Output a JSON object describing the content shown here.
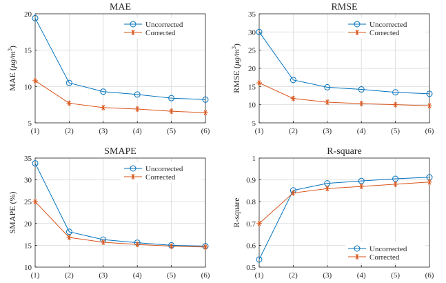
{
  "colors": {
    "uncorrected": "#0072BD",
    "corrected": "#D95319"
  },
  "chart_data": [
    {
      "type": "line",
      "title": "MAE",
      "ylabel_prefix": "MAE (",
      "ylabel_unit": "μg/m",
      "ylabel_exp": "3",
      "ylabel_suffix": ")",
      "categories": [
        "(1)",
        "(2)",
        "(3)",
        "(4)",
        "(5)",
        "(6)"
      ],
      "ylim": [
        5,
        20
      ],
      "yticks": [
        5,
        10,
        15,
        20
      ],
      "grid": true,
      "legend_position": "top-right",
      "series": [
        {
          "name": "Uncorrected",
          "marker": "circle",
          "values": [
            19.4,
            10.5,
            9.3,
            8.9,
            8.4,
            8.2
          ]
        },
        {
          "name": "Corrected",
          "marker": "star",
          "values": [
            10.8,
            7.7,
            7.1,
            6.9,
            6.6,
            6.4
          ]
        }
      ]
    },
    {
      "type": "line",
      "title": "RMSE",
      "ylabel_prefix": "RMSE (",
      "ylabel_unit": "μg/m",
      "ylabel_exp": "3",
      "ylabel_suffix": ")",
      "categories": [
        "(1)",
        "(2)",
        "(3)",
        "(4)",
        "(5)",
        "(6)"
      ],
      "ylim": [
        5,
        35
      ],
      "yticks": [
        5,
        10,
        15,
        20,
        25,
        30,
        35
      ],
      "grid": true,
      "legend_position": "top-right",
      "series": [
        {
          "name": "Uncorrected",
          "marker": "circle",
          "values": [
            30.0,
            16.8,
            14.8,
            14.2,
            13.4,
            13.0
          ]
        },
        {
          "name": "Corrected",
          "marker": "star",
          "values": [
            16.0,
            11.7,
            10.7,
            10.3,
            10.0,
            9.7
          ]
        }
      ]
    },
    {
      "type": "line",
      "title": "SMAPE",
      "ylabel_prefix": "SMAPE (%)",
      "ylabel_unit": "",
      "ylabel_exp": "",
      "ylabel_suffix": "",
      "categories": [
        "(1)",
        "(2)",
        "(3)",
        "(4)",
        "(5)",
        "(6)"
      ],
      "ylim": [
        10,
        35
      ],
      "yticks": [
        10,
        15,
        20,
        25,
        30,
        35
      ],
      "grid": true,
      "legend_position": "top-right",
      "series": [
        {
          "name": "Uncorrected",
          "marker": "circle",
          "values": [
            33.8,
            18.1,
            16.3,
            15.6,
            15.0,
            14.8
          ]
        },
        {
          "name": "Corrected",
          "marker": "star",
          "values": [
            25.0,
            16.8,
            15.7,
            15.2,
            14.8,
            14.6
          ]
        }
      ]
    },
    {
      "type": "line",
      "title": "R-square",
      "ylabel_prefix": "R-square",
      "ylabel_unit": "",
      "ylabel_exp": "",
      "ylabel_suffix": "",
      "categories": [
        "(1)",
        "(2)",
        "(3)",
        "(4)",
        "(5)",
        "(6)"
      ],
      "ylim": [
        0.5,
        1
      ],
      "yticks": [
        0.5,
        0.6,
        0.7,
        0.8,
        0.9,
        1
      ],
      "grid": true,
      "legend_position": "bottom-right",
      "series": [
        {
          "name": "Uncorrected",
          "marker": "circle",
          "values": [
            0.535,
            0.852,
            0.884,
            0.895,
            0.905,
            0.912
          ]
        },
        {
          "name": "Corrected",
          "marker": "star",
          "values": [
            0.7,
            0.84,
            0.86,
            0.87,
            0.88,
            0.89
          ]
        }
      ]
    }
  ]
}
